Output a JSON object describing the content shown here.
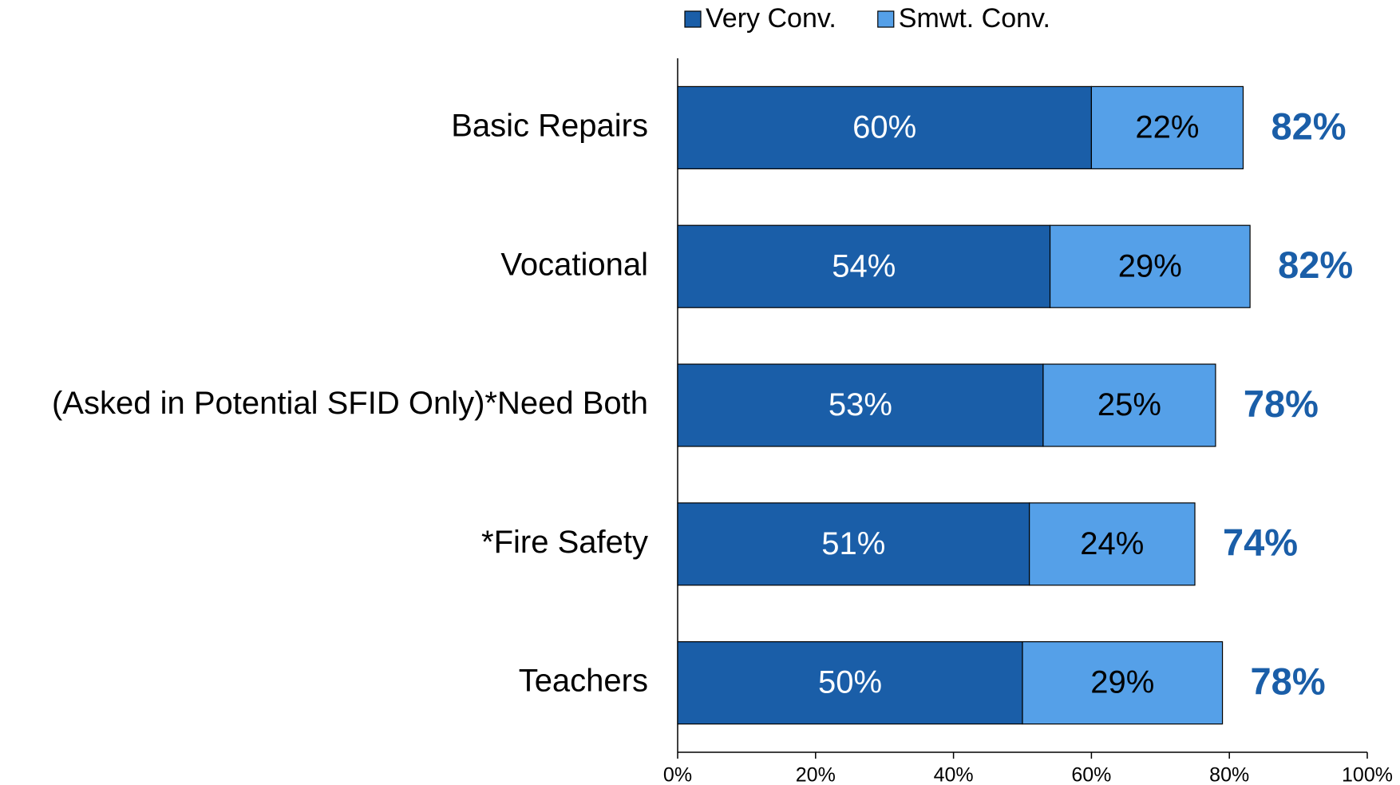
{
  "chart_data": {
    "type": "stacked_bar_horizontal",
    "categories": [
      "Basic Repairs",
      "Vocational",
      "(Asked in Potential SFID Only)*Need Both",
      "*Fire Safety",
      "Teachers"
    ],
    "series": [
      {
        "name": "Very Conv.",
        "color": "#1a5ea8",
        "values": [
          60,
          54,
          53,
          51,
          50
        ],
        "value_labels": [
          "60%",
          "54%",
          "53%",
          "51%",
          "50%"
        ]
      },
      {
        "name": "Smwt. Conv.",
        "color": "#55a0e8",
        "values": [
          22,
          29,
          25,
          24,
          29
        ],
        "value_labels": [
          "22%",
          "29%",
          "25%",
          "24%",
          "29%"
        ]
      }
    ],
    "totals": [
      82,
      82,
      78,
      74,
      78
    ],
    "total_labels": [
      "82%",
      "82%",
      "78%",
      "74%",
      "78%"
    ],
    "total_color": "#1a5ea8",
    "xlim": [
      0,
      100
    ],
    "xticks": [
      {
        "value": 0,
        "label": "0%"
      },
      {
        "value": 20,
        "label": "20%"
      },
      {
        "value": 40,
        "label": "40%"
      },
      {
        "value": 60,
        "label": "60%"
      },
      {
        "value": 80,
        "label": "80%"
      },
      {
        "value": 100,
        "label": "100%"
      }
    ],
    "legend": "top"
  }
}
